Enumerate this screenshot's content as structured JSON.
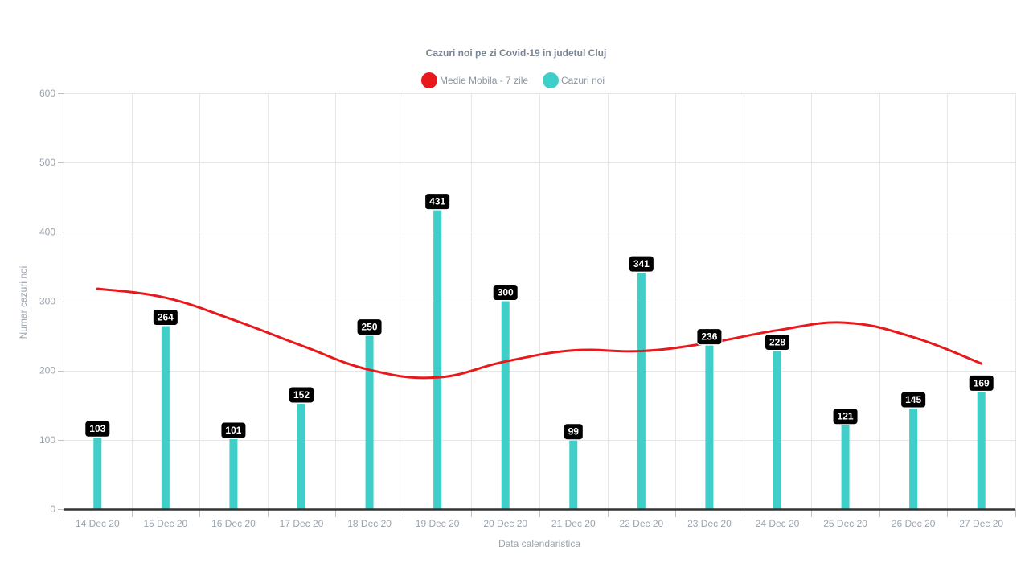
{
  "chart_data": {
    "type": "bar",
    "title": "Cazuri noi pe zi Covid-19 in judetul Cluj",
    "xlabel": "Data calendaristica",
    "ylabel": "Numar cazuri noi",
    "categories": [
      "14 Dec 20",
      "15 Dec 20",
      "16 Dec 20",
      "17 Dec 20",
      "18 Dec 20",
      "19 Dec 20",
      "20 Dec 20",
      "21 Dec 20",
      "22 Dec 20",
      "23 Dec 20",
      "24 Dec 20",
      "25 Dec 20",
      "26 Dec 20",
      "27 Dec 20"
    ],
    "ylim": [
      0,
      600
    ],
    "yticks": [
      0,
      100,
      200,
      300,
      400,
      500,
      600
    ],
    "grid": true,
    "legend_position": "top-center",
    "series": [
      {
        "name": "Medie Mobila - 7 zile",
        "type": "line",
        "smooth": true,
        "color": "#e8191c",
        "values": [
          318,
          305,
          273,
          236,
          201,
          190,
          213,
          229,
          228,
          240,
          258,
          269,
          248,
          210
        ]
      },
      {
        "name": "Cazuri noi",
        "type": "bar",
        "color": "#3fcfc8",
        "values": [
          103,
          264,
          101,
          152,
          250,
          431,
          300,
          99,
          341,
          236,
          228,
          121,
          145,
          169
        ],
        "data_labels": [
          "103",
          "264",
          "101",
          "152",
          "250",
          "431",
          "300",
          "99",
          "341",
          "236",
          "228",
          "121",
          "145",
          "169"
        ]
      }
    ]
  }
}
